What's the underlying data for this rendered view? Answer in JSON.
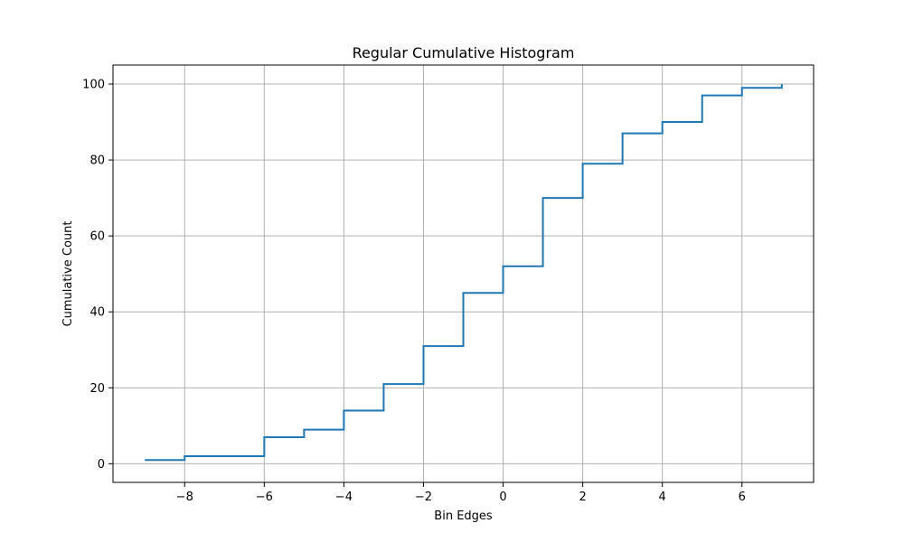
{
  "chart_data": {
    "type": "line",
    "style": "step",
    "title": "Regular Cumulative Histogram",
    "xlabel": "Bin Edges",
    "ylabel": "Cumulative Count",
    "xlim": [
      -9.8,
      7.8
    ],
    "ylim": [
      -4.9,
      105
    ],
    "grid": true,
    "line_color": "#1f77b4",
    "grid_color": "#b0b0b0",
    "x_ticks": [
      -8,
      -6,
      -4,
      -2,
      0,
      2,
      4,
      6
    ],
    "x_tick_labels": [
      "−8",
      "−6",
      "−4",
      "−2",
      "0",
      "2",
      "4",
      "6"
    ],
    "y_ticks": [
      0,
      20,
      40,
      60,
      80,
      100
    ],
    "y_tick_labels": [
      "0",
      "20",
      "40",
      "60",
      "80",
      "100"
    ],
    "bin_edges": [
      -9,
      -8,
      -7,
      -6,
      -5,
      -4,
      -3,
      -2,
      -1,
      0,
      1,
      2,
      3,
      4,
      5,
      6,
      7
    ],
    "cumulative_counts": [
      1,
      2,
      2,
      7,
      9,
      14,
      21,
      31,
      45,
      52,
      70,
      79,
      87,
      90,
      97,
      99,
      100
    ]
  }
}
